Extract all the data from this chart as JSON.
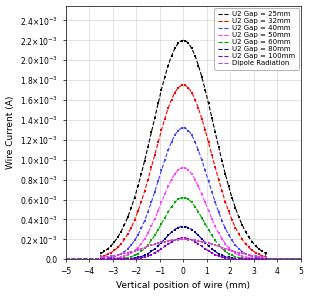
{
  "title": "",
  "xlabel": "Vertical position of wire (mm)",
  "ylabel": "Wire Current (A)",
  "xlim": [
    -5,
    5
  ],
  "ylim": [
    0.0,
    0.00255
  ],
  "series": [
    {
      "label": "U2 Gap = 25mm",
      "peak": 0.0022,
      "sigma": 1.3,
      "cutoff": 3.5,
      "color": "#000000",
      "marker": "s"
    },
    {
      "label": "U2 Gap = 32mm",
      "peak": 0.00175,
      "sigma": 1.2,
      "cutoff": 3.5,
      "color": "#ff0000",
      "marker": "s"
    },
    {
      "label": "U2 Gap = 40mm",
      "peak": 0.00132,
      "sigma": 1.05,
      "cutoff": 3.5,
      "color": "#4040ff",
      "marker": "s"
    },
    {
      "label": "U2 Gap = 50mm",
      "peak": 0.00092,
      "sigma": 0.95,
      "cutoff": 3.5,
      "color": "#ff40ff",
      "marker": "s"
    },
    {
      "label": "U2 Gap = 60mm",
      "peak": 0.00062,
      "sigma": 0.88,
      "cutoff": 3.5,
      "color": "#00aa00",
      "marker": "s"
    },
    {
      "label": "U2 Gap = 80mm",
      "peak": 0.00033,
      "sigma": 0.8,
      "cutoff": 3.5,
      "color": "#000099",
      "marker": "s"
    },
    {
      "label": "U2 Gap = 100mm",
      "peak": 0.000215,
      "sigma": 0.78,
      "cutoff": 3.5,
      "color": "#8800cc",
      "marker": "s"
    },
    {
      "label": "Dipole Radiation",
      "peak": 0.0002,
      "sigma": 1.6,
      "cutoff": 3.5,
      "color": "#cc44cc",
      "marker": "s"
    }
  ],
  "ytick_values": [
    0.0,
    0.0002,
    0.0004,
    0.0006,
    0.0008,
    0.001,
    0.0012,
    0.0014,
    0.0016,
    0.0018,
    0.002,
    0.0022,
    0.0024
  ],
  "grid_color": "#d0d0d0",
  "bg_color": "#ffffff",
  "legend_fontsize": 5.0,
  "axis_fontsize": 6.5,
  "tick_fontsize": 5.5,
  "linewidth": 0.8,
  "markersize": 1.8,
  "n_markers": 50
}
